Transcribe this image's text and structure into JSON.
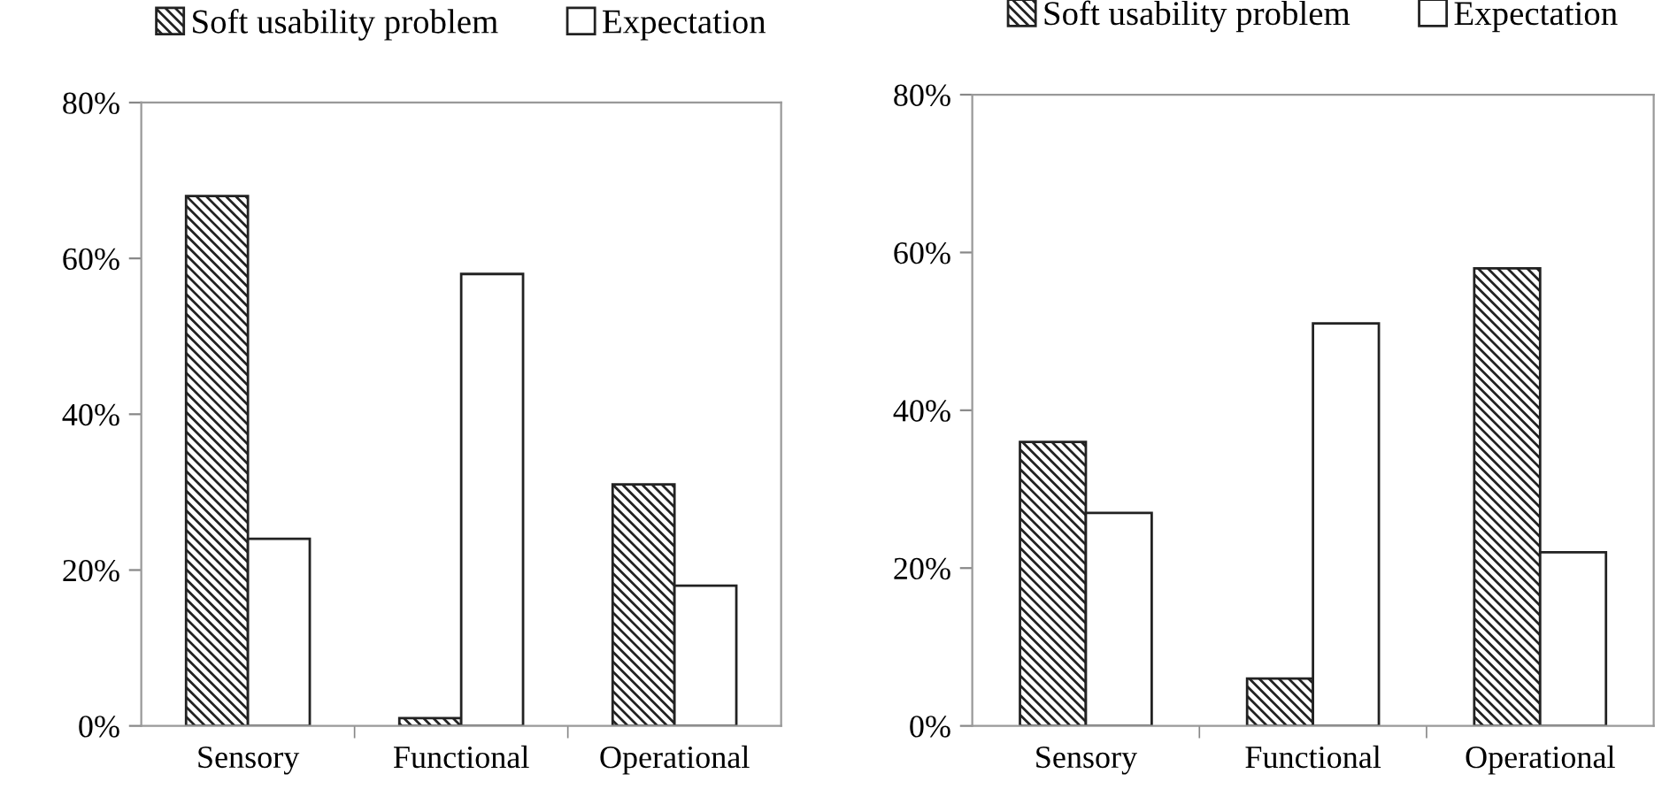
{
  "chart_data": [
    {
      "type": "bar",
      "categories": [
        "Sensory",
        "Functional",
        "Operational"
      ],
      "series": [
        {
          "name": "Soft usability problem",
          "color": "#222222",
          "values": [
            68,
            1,
            31
          ]
        },
        {
          "name": "Expectation",
          "color": "#ffffff",
          "values": [
            24,
            58,
            18
          ]
        }
      ],
      "ylim": [
        0,
        80
      ],
      "yticks": [
        {
          "value": 0,
          "label": "0%"
        },
        {
          "value": 20,
          "label": "20%"
        },
        {
          "value": 40,
          "label": "40%"
        },
        {
          "value": 60,
          "label": "60%"
        },
        {
          "value": 80,
          "label": "80%"
        }
      ],
      "grid": false,
      "legend": "top"
    },
    {
      "type": "bar",
      "categories": [
        "Sensory",
        "Functional",
        "Operational"
      ],
      "series": [
        {
          "name": "Soft usability problem",
          "color": "#222222",
          "values": [
            36,
            6,
            58
          ]
        },
        {
          "name": "Expectation",
          "color": "#ffffff",
          "values": [
            27,
            51,
            22
          ]
        }
      ],
      "ylim": [
        0,
        80
      ],
      "yticks": [
        {
          "value": 0,
          "label": "0%"
        },
        {
          "value": 20,
          "label": "20%"
        },
        {
          "value": 40,
          "label": "40%"
        },
        {
          "value": 60,
          "label": "60%"
        },
        {
          "value": 80,
          "label": "80%"
        }
      ],
      "grid": false,
      "legend": "top"
    }
  ]
}
